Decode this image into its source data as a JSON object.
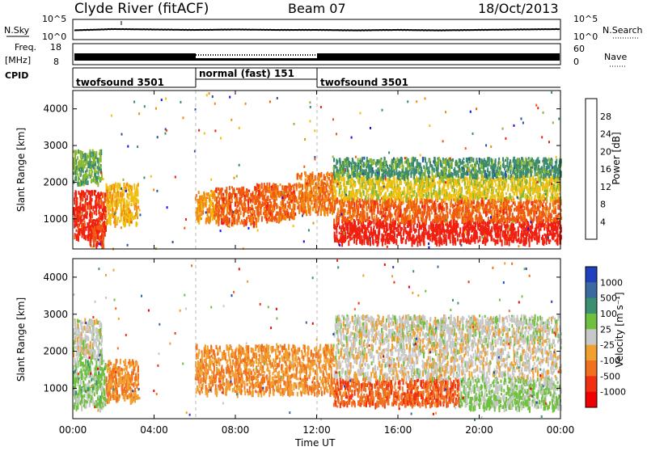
{
  "header": {
    "station": "Clyde River (fitACF)",
    "beam": "Beam 07",
    "date": "18/Oct/2013"
  },
  "noise_panel": {
    "left_label": "N.Sky",
    "right_label": "N.Search",
    "tick_top": "10^5",
    "tick_bottom": "10^0"
  },
  "freq_panel": {
    "left_label_1": "Freq.",
    "left_label_2": "[MHz]",
    "left_tick_top": "18",
    "left_tick_bottom": "8",
    "right_label": "Nave",
    "right_tick_top": "60",
    "right_tick_bottom": "0"
  },
  "cpid_panel": {
    "label": "CPID",
    "segments": [
      {
        "name": "twofsound 3501",
        "start_hour": 0,
        "end_hour": 6
      },
      {
        "name": "normal (fast) 151",
        "start_hour": 6,
        "end_hour": 12
      },
      {
        "name": "twofsound 3501",
        "start_hour": 12,
        "end_hour": 24
      }
    ]
  },
  "power_panel": {
    "ylabel": "Slant Range [km]",
    "yticks": [
      "1000",
      "2000",
      "3000",
      "4000"
    ],
    "colorbar_label": "Power [dB]",
    "colorbar_ticks": [
      "4",
      "8",
      "12",
      "16",
      "20",
      "24",
      "28"
    ],
    "colors": [
      "#1010f0",
      "#2a4fa0",
      "#3a8a70",
      "#8ab830",
      "#f0c010",
      "#f08a10",
      "#f05a10",
      "#f02010"
    ]
  },
  "velocity_panel": {
    "ylabel": "Slant Range [km]",
    "yticks": [
      "1000",
      "2000",
      "3000",
      "4000"
    ],
    "colorbar_label": "Velocity [m s⁻¹]",
    "colorbar_ticks": [
      "1000",
      "500",
      "100",
      "25",
      "-25",
      "-100",
      "-500",
      "-1000"
    ],
    "colors": [
      "#2040c0",
      "#3a6aa0",
      "#3a9070",
      "#70c040",
      "#c8c8c8",
      "#f0a030",
      "#f07020",
      "#f03010",
      "#f00000"
    ]
  },
  "x_axis": {
    "ticks": [
      "00:00",
      "04:00",
      "08:00",
      "12:00",
      "16:00",
      "20:00",
      "00:00"
    ],
    "label": "Time UT"
  },
  "chart_data": [
    {
      "type": "line",
      "panel": "noise",
      "x_range_hours": [
        0,
        24
      ],
      "series": [
        {
          "x": [
            0,
            2,
            4,
            6,
            8,
            10,
            12,
            14,
            16,
            18,
            20,
            22,
            24
          ],
          "y": [
            2.3,
            2.6,
            2.5,
            2.4,
            2.5,
            2.4,
            2.4,
            2.3,
            2.4,
            2.3,
            2.4,
            2.5,
            2.6
          ]
        }
      ],
      "y_log10_range": [
        0,
        5
      ]
    },
    {
      "type": "heatmap",
      "panel": "power",
      "x_range_hours": [
        0,
        24
      ],
      "ylim": [
        180,
        4500
      ],
      "zlim": [
        0,
        30
      ],
      "blobs": [
        {
          "t0": 0.0,
          "t1": 1.6,
          "r0": 500,
          "r1": 1800,
          "v": 28
        },
        {
          "t0": 1.6,
          "t1": 3.2,
          "r0": 900,
          "r1": 2000,
          "v": 18
        },
        {
          "t0": 0.8,
          "t1": 1.5,
          "r0": 300,
          "r1": 900,
          "v": 26
        },
        {
          "t0": 0.0,
          "t1": 1.4,
          "r0": 2000,
          "r1": 2900,
          "v": 12
        },
        {
          "t0": 6.0,
          "t1": 7.0,
          "r0": 1000,
          "r1": 1800,
          "v": 20
        },
        {
          "t0": 7.0,
          "t1": 9.0,
          "r0": 900,
          "r1": 1900,
          "v": 24
        },
        {
          "t0": 9.0,
          "t1": 11.0,
          "r0": 1000,
          "r1": 2000,
          "v": 24
        },
        {
          "t0": 11.0,
          "t1": 12.8,
          "r0": 1200,
          "r1": 2300,
          "v": 22
        },
        {
          "t0": 12.8,
          "t1": 24.0,
          "r0": 400,
          "r1": 1000,
          "v": 30
        },
        {
          "t0": 12.8,
          "t1": 24.0,
          "r0": 1000,
          "r1": 1600,
          "v": 24
        },
        {
          "t0": 12.8,
          "t1": 24.0,
          "r0": 1600,
          "r1": 2200,
          "v": 16
        },
        {
          "t0": 12.8,
          "t1": 24.0,
          "r0": 2200,
          "r1": 2700,
          "v": 10
        }
      ]
    },
    {
      "type": "heatmap",
      "panel": "velocity",
      "x_range_hours": [
        0,
        24
      ],
      "ylim": [
        180,
        4500
      ],
      "zlim": [
        -1000,
        1000
      ],
      "blobs": [
        {
          "t0": 0.0,
          "t1": 1.6,
          "r0": 500,
          "r1": 1800,
          "v": 200
        },
        {
          "t0": 1.6,
          "t1": 3.2,
          "r0": 700,
          "r1": 1800,
          "v": -300
        },
        {
          "t0": 0.0,
          "t1": 1.4,
          "r0": 1800,
          "r1": 2900,
          "v": 0
        },
        {
          "t0": 6.0,
          "t1": 12.8,
          "r0": 900,
          "r1": 2200,
          "v": -300
        },
        {
          "t0": 12.8,
          "t1": 19.0,
          "r0": 600,
          "r1": 1300,
          "v": -500
        },
        {
          "t0": 12.8,
          "t1": 24.0,
          "r0": 1300,
          "r1": 2300,
          "v": -40
        },
        {
          "t0": 19.0,
          "t1": 24.0,
          "r0": 500,
          "r1": 1300,
          "v": 150
        },
        {
          "t0": 12.8,
          "t1": 24.0,
          "r0": 2300,
          "r1": 3000,
          "v": 0
        }
      ]
    }
  ]
}
